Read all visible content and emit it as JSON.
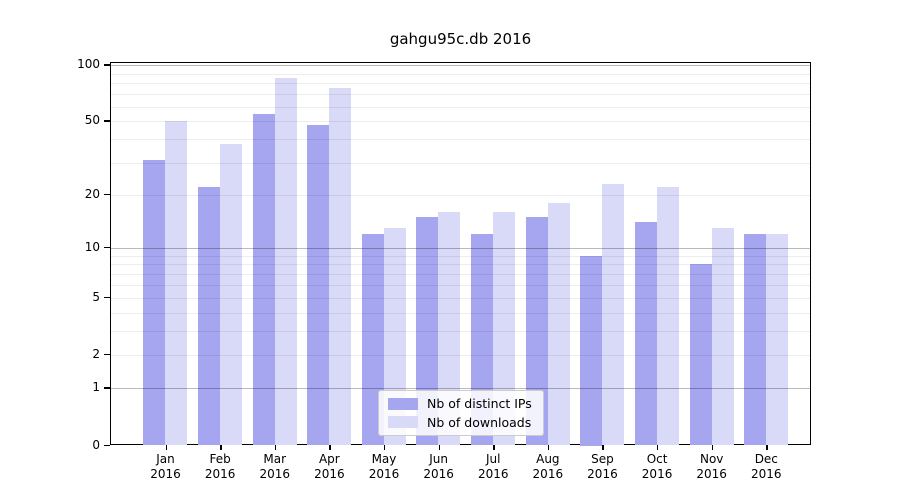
{
  "figure": {
    "background": "#ffffff",
    "title": "gahgu95c.db 2016"
  },
  "chart_data": {
    "type": "bar",
    "title": "gahgu95c.db 2016",
    "categories": [
      "Jan",
      "Feb",
      "Mar",
      "Apr",
      "May",
      "Jun",
      "Jul",
      "Aug",
      "Sep",
      "Oct",
      "Nov",
      "Dec"
    ],
    "x_year": "2016",
    "series": [
      {
        "name": "Nb of distinct IPs",
        "color": "#a5a5f0",
        "values": [
          31,
          22,
          55,
          48,
          12,
          15,
          12,
          15,
          9,
          14,
          8,
          12
        ]
      },
      {
        "name": "Nb of downloads",
        "color": "#d9d9f8",
        "values": [
          50,
          38,
          85,
          76,
          13,
          16,
          16,
          18,
          23,
          22,
          13,
          12
        ]
      }
    ],
    "yscale": "log1p",
    "ylim": [
      0,
      102.5
    ],
    "ytick_labels": [
      "0",
      "1",
      "2",
      "5",
      "10",
      "20",
      "50",
      "100"
    ],
    "yticks": [
      0,
      1,
      2,
      5,
      10,
      20,
      50,
      100
    ],
    "major_gridlines": [
      1,
      10,
      100
    ],
    "minor_gridlines": [
      2,
      3,
      4,
      5,
      6,
      7,
      8,
      9,
      20,
      30,
      40,
      50,
      60,
      70,
      80,
      90
    ],
    "grid": true,
    "legend_position": "lower-center",
    "axis_color": "#000000",
    "major_grid_color": "#b9b9b9",
    "minor_grid_color": "#ededed"
  }
}
